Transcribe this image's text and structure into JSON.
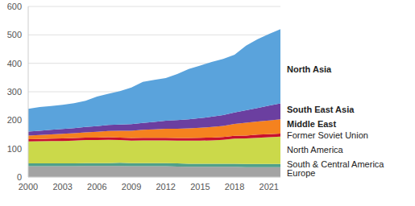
{
  "chart_data": {
    "type": "area",
    "stacked": true,
    "grid": true,
    "x": [
      2000,
      2001,
      2002,
      2003,
      2004,
      2005,
      2006,
      2007,
      2008,
      2009,
      2010,
      2011,
      2012,
      2013,
      2014,
      2015,
      2016,
      2017,
      2018,
      2019,
      2020,
      2021,
      2022
    ],
    "xlim": [
      2000,
      2022
    ],
    "xticks": [
      2000,
      2003,
      2006,
      2009,
      2012,
      2015,
      2018,
      2021
    ],
    "ylim": [
      0,
      600
    ],
    "yticks": [
      0,
      100,
      200,
      300,
      400,
      500,
      600
    ],
    "series": [
      {
        "name": "Europe",
        "color": "#a3a3a3",
        "values": [
          38,
          38,
          38,
          38,
          38,
          39,
          39,
          39,
          39,
          38,
          38,
          38,
          38,
          37,
          36,
          36,
          36,
          36,
          36,
          35,
          35,
          35,
          35
        ]
      },
      {
        "name": "South & Central America",
        "color": "#4fa08a",
        "values": [
          10,
          10,
          10,
          10,
          10,
          10,
          10,
          10,
          11,
          11,
          11,
          11,
          11,
          11,
          11,
          11,
          11,
          11,
          11,
          11,
          11,
          11,
          11
        ]
      },
      {
        "name": "North America",
        "color": "#cbd94a",
        "values": [
          77,
          78,
          79,
          79,
          80,
          81,
          81,
          82,
          80,
          79,
          80,
          80,
          80,
          80,
          81,
          81,
          82,
          84,
          88,
          90,
          92,
          94,
          96
        ]
      },
      {
        "name": "Former Soviet Union",
        "color": "#c8102e",
        "values": [
          8,
          8,
          8,
          9,
          9,
          9,
          9,
          9,
          9,
          9,
          9,
          9,
          9,
          9,
          9,
          10,
          10,
          10,
          10,
          10,
          11,
          11,
          11
        ]
      },
      {
        "name": "Middle East",
        "color": "#f5821f",
        "values": [
          13,
          14,
          15,
          16,
          17,
          18,
          20,
          22,
          24,
          26,
          28,
          30,
          32,
          33,
          34,
          35,
          37,
          39,
          42,
          45,
          46,
          48,
          50
        ]
      },
      {
        "name": "South East Asia",
        "color": "#6b3fa0",
        "values": [
          14,
          15,
          16,
          17,
          18,
          19,
          20,
          21,
          22,
          23,
          24,
          26,
          28,
          30,
          32,
          34,
          36,
          38,
          40,
          44,
          48,
          52,
          56
        ]
      },
      {
        "name": "North Asia",
        "color": "#5aa3dc",
        "values": [
          80,
          83,
          84,
          85,
          88,
          92,
          104,
          110,
          117,
          129,
          145,
          148,
          150,
          162,
          177,
          185,
          193,
          197,
          203,
          227,
          242,
          252,
          261
        ]
      }
    ]
  }
}
